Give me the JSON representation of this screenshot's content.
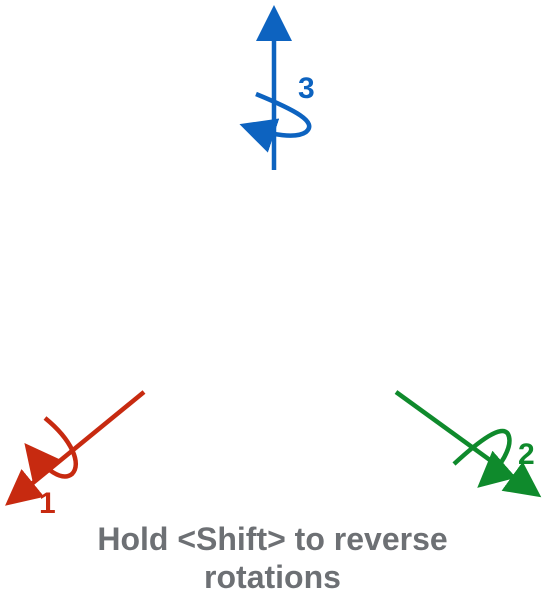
{
  "axes": [
    {
      "id": "axis-1",
      "label": "1",
      "color": "#c72a10"
    },
    {
      "id": "axis-2",
      "label": "2",
      "color": "#0f8a2c"
    },
    {
      "id": "axis-3",
      "label": "3",
      "color": "#0d63c0"
    }
  ],
  "hint": {
    "line1": "Hold <Shift> to reverse",
    "line2": "rotations"
  }
}
